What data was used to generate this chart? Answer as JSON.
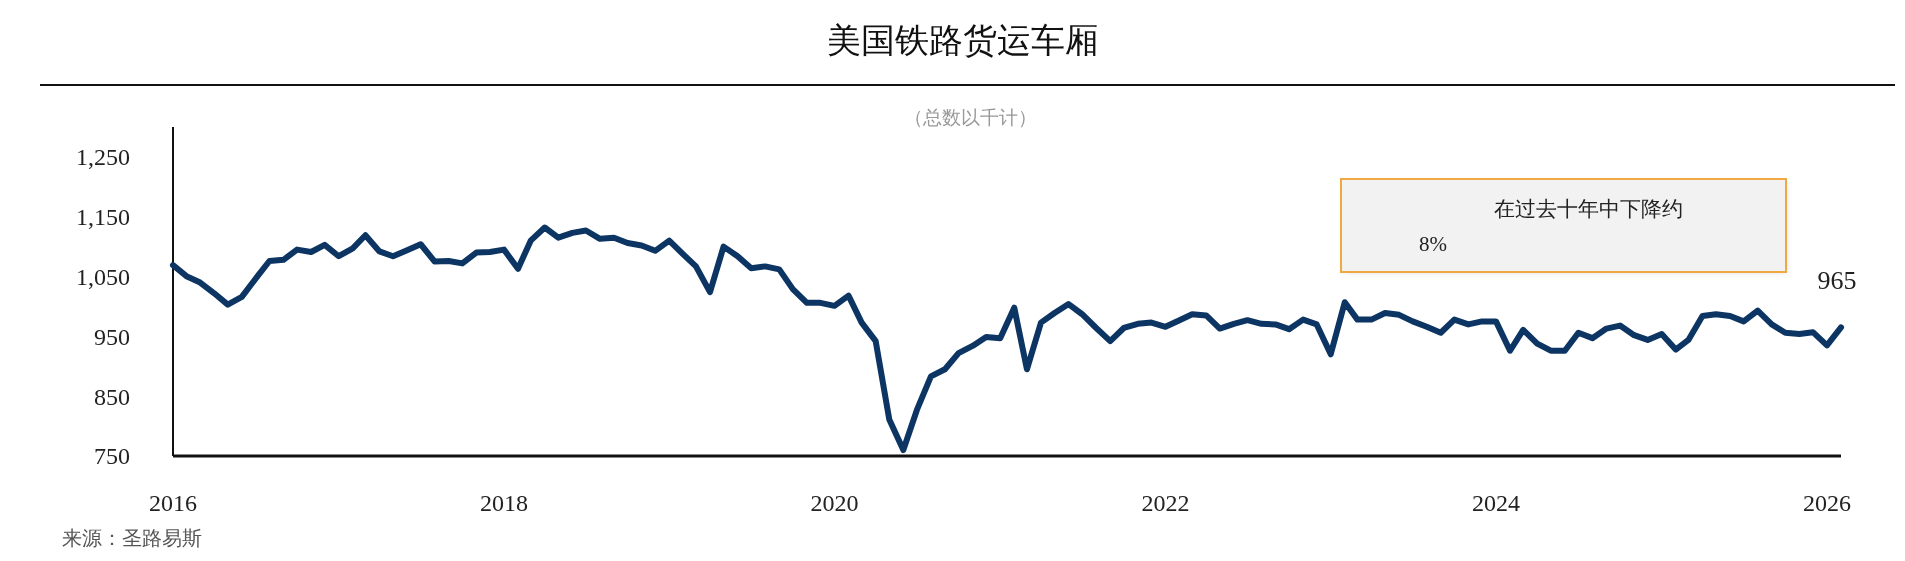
{
  "chart_data": {
    "type": "line",
    "title": "美国铁路货运车厢",
    "subtitle": "（总数以千计）",
    "x": [
      "2016-01",
      "2016-02",
      "2016-03",
      "2016-04",
      "2016-05",
      "2016-06",
      "2016-07",
      "2016-08",
      "2016-09",
      "2016-10",
      "2016-11",
      "2016-12",
      "2017-01",
      "2017-02",
      "2017-03",
      "2017-04",
      "2017-05",
      "2017-06",
      "2017-07",
      "2017-08",
      "2017-09",
      "2017-10",
      "2017-11",
      "2017-12",
      "2018-01",
      "2018-02",
      "2018-03",
      "2018-04",
      "2018-05",
      "2018-06",
      "2018-07",
      "2018-08",
      "2018-09",
      "2018-10",
      "2018-11",
      "2018-12",
      "2019-01",
      "2019-02",
      "2019-03",
      "2019-04",
      "2019-05",
      "2019-06",
      "2019-07",
      "2019-08",
      "2019-09",
      "2019-10",
      "2019-11",
      "2019-12",
      "2020-01",
      "2020-02",
      "2020-03",
      "2020-04",
      "2020-05",
      "2020-06",
      "2020-07",
      "2020-08",
      "2020-09",
      "2020-10",
      "2020-11",
      "2020-12",
      "2021-01",
      "2021-02",
      "2021-03",
      "2021-04",
      "2021-05",
      "2021-06",
      "2021-07",
      "2021-08",
      "2021-09",
      "2021-10",
      "2021-11",
      "2021-12",
      "2022-01",
      "2022-02",
      "2022-03",
      "2022-04",
      "2022-05",
      "2022-06",
      "2022-07",
      "2022-08",
      "2022-09",
      "2022-10",
      "2022-11",
      "2022-12",
      "2023-01",
      "2023-02",
      "2023-03",
      "2023-04",
      "2023-05",
      "2023-06",
      "2023-07",
      "2023-08",
      "2023-09",
      "2023-10",
      "2023-11",
      "2023-12",
      "2024-01",
      "2024-02",
      "2024-03",
      "2024-04",
      "2024-05",
      "2024-06",
      "2024-07",
      "2024-08",
      "2024-09",
      "2024-10",
      "2024-11",
      "2024-12",
      "2025-01",
      "2025-02",
      "2025-03",
      "2025-04",
      "2025-05",
      "2025-06",
      "2025-07",
      "2025-08",
      "2025-09",
      "2025-10",
      "2025-11",
      "2025-12",
      "2026-01",
      "2026-02"
    ],
    "series": [
      {
        "color": "#0d3563",
        "values": [
          1069,
          1050,
          1040,
          1022,
          1003,
          1016,
          1046,
          1076,
          1078,
          1095,
          1091,
          1103,
          1084,
          1097,
          1119,
          1092,
          1084,
          1094,
          1104,
          1075,
          1076,
          1072,
          1090,
          1091,
          1095,
          1063,
          1110,
          1132,
          1115,
          1123,
          1127,
          1113,
          1115,
          1106,
          1102,
          1093,
          1110,
          1087,
          1067,
          1024,
          1100,
          1084,
          1064,
          1067,
          1062,
          1029,
          1006,
          1006,
          1001,
          1018,
          973,
          942,
          811,
          760,
          827,
          883,
          895,
          922,
          934,
          949,
          947,
          998,
          895,
          973,
          989,
          1004,
          987,
          964,
          942,
          964,
          971,
          973,
          966,
          977,
          987,
          985,
          963,
          971,
          977,
          971,
          970,
          962,
          978,
          970,
          920,
          1007,
          978,
          978,
          989,
          986,
          975,
          966,
          956,
          978,
          970,
          975,
          975,
          926,
          961,
          938,
          926,
          926,
          956,
          947,
          963,
          968,
          952,
          944,
          954,
          928,
          944,
          984,
          987,
          984,
          975,
          993,
          970,
          956,
          954,
          957,
          935,
          965
        ]
      }
    ],
    "xlim": [
      "2016-01",
      "2026-02"
    ],
    "xticks": [
      "2016",
      "2018",
      "2020",
      "2022",
      "2024",
      "2026"
    ],
    "ylim": [
      750,
      1300
    ],
    "yticks": [
      750,
      850,
      950,
      {
        "value": 1050,
        "label": "1,050"
      },
      {
        "value": 1150,
        "label": "1,150"
      },
      {
        "value": 1250,
        "label": "1,250"
      }
    ],
    "grid": false,
    "annotations": [
      "在过去十年中下降约\n8%",
      {
        "text": "965",
        "x": "2026-02",
        "y": 965
      },
      "来源：圣路易斯"
    ]
  }
}
